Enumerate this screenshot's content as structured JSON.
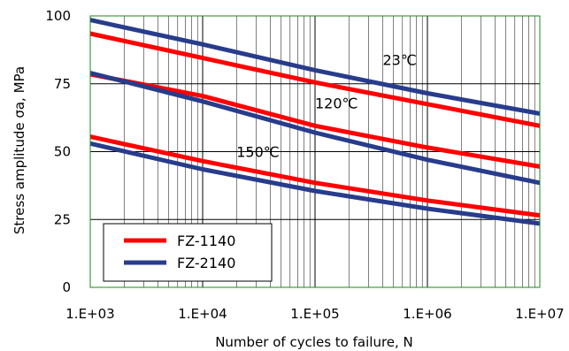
{
  "chart_data": {
    "type": "line",
    "title": "",
    "xlabel": "Number of cycles to failure, N",
    "ylabel": "Stress amplitude σa, MPa",
    "x_scale": "log",
    "xlim": [
      1000,
      10000000
    ],
    "ylim": [
      0,
      100
    ],
    "x_ticks": [
      1000,
      10000,
      100000,
      1000000,
      10000000
    ],
    "x_tick_labels": [
      "1.E+03",
      "1.E+04",
      "1.E+05",
      "1.E+06",
      "1.E+07"
    ],
    "y_ticks": [
      0,
      25,
      50,
      75,
      100
    ],
    "y_tick_labels": [
      "0",
      "25",
      "50",
      "75",
      "100"
    ],
    "grid": true,
    "legend_position": "bottom-left",
    "colors": {
      "FZ-1140": "#ff0000",
      "FZ-2140": "#283c8c",
      "grid": "#000000",
      "plot_border": "#1a8a1a"
    },
    "legend": [
      {
        "name": "FZ-1140",
        "color": "#ff0000"
      },
      {
        "name": "FZ-2140",
        "color": "#283c8c"
      }
    ],
    "annotations": [
      {
        "text": "23℃",
        "x": 400000,
        "y": 82
      },
      {
        "text": "120℃",
        "x": 100000,
        "y": 66
      },
      {
        "text": "150℃",
        "x": 20000,
        "y": 48
      }
    ],
    "series": [
      {
        "name": "FZ-1140",
        "group": "23℃",
        "color": "#ff0000",
        "x": [
          1000,
          10000,
          100000,
          1000000,
          10000000
        ],
        "y": [
          93.5,
          84.5,
          75.5,
          67.5,
          59.5
        ]
      },
      {
        "name": "FZ-2140",
        "group": "23℃",
        "color": "#283c8c",
        "x": [
          1000,
          10000,
          100000,
          1000000,
          10000000
        ],
        "y": [
          98.5,
          89.5,
          80.0,
          71.5,
          64.0
        ]
      },
      {
        "name": "FZ-1140",
        "group": "120℃",
        "color": "#ff0000",
        "x": [
          1000,
          10000,
          100000,
          1000000,
          10000000
        ],
        "y": [
          78.5,
          70.5,
          59.5,
          51.5,
          44.5
        ]
      },
      {
        "name": "FZ-2140",
        "group": "120℃",
        "color": "#283c8c",
        "x": [
          1000,
          10000,
          100000,
          1000000,
          10000000
        ],
        "y": [
          79.0,
          68.5,
          57.0,
          47.0,
          38.5
        ]
      },
      {
        "name": "FZ-1140",
        "group": "150℃",
        "color": "#ff0000",
        "x": [
          1000,
          10000,
          100000,
          1000000,
          10000000
        ],
        "y": [
          55.5,
          46.5,
          38.5,
          32.0,
          26.5
        ]
      },
      {
        "name": "FZ-2140",
        "group": "150℃",
        "color": "#283c8c",
        "x": [
          1000,
          10000,
          100000,
          1000000,
          10000000
        ],
        "y": [
          53.0,
          43.5,
          35.5,
          29.0,
          23.5
        ]
      }
    ]
  }
}
